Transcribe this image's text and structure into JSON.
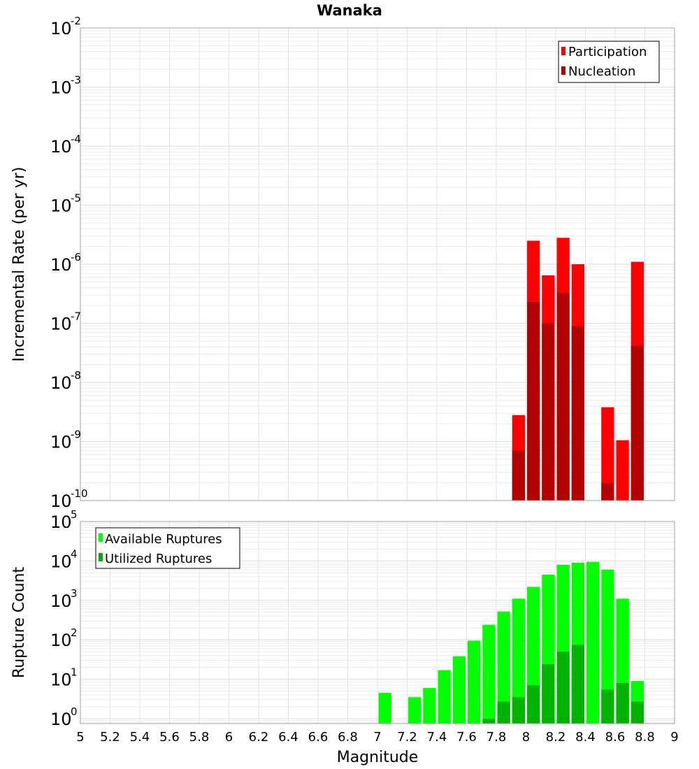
{
  "chart_data": [
    {
      "type": "bar",
      "title": "Wanaka",
      "xlabel": "Magnitude",
      "ylabel": "Incremental Rate (per yr)",
      "yscale": "log",
      "ylim": [
        1e-10,
        0.01
      ],
      "xlim": [
        5,
        9
      ],
      "bin_width": 0.1,
      "y_tick_exponents": [
        -2,
        -3,
        -4,
        -5,
        -6,
        -7,
        -8,
        -9,
        -10
      ],
      "legend_position": "top-right",
      "series": [
        {
          "name": "Participation",
          "color": "#ff0000",
          "x": [
            7.95,
            8.05,
            8.15,
            8.25,
            8.35,
            8.55,
            8.65,
            8.75
          ],
          "values": [
            2.8e-09,
            2.5e-06,
            6.5e-07,
            2.8e-06,
            1e-06,
            3.8e-09,
            1.05e-09,
            1.1e-06
          ]
        },
        {
          "name": "Nucleation",
          "color": "#b30000",
          "x": [
            7.95,
            8.05,
            8.15,
            8.25,
            8.35,
            8.55,
            8.75
          ],
          "values": [
            7e-10,
            2.3e-07,
            1e-07,
            3.3e-07,
            9e-08,
            2e-10,
            4.2e-08
          ]
        }
      ]
    },
    {
      "type": "bar",
      "title": "",
      "xlabel": "Magnitude",
      "ylabel": "Rupture Count",
      "yscale": "log",
      "ylim": [
        0.75,
        100000.0
      ],
      "xlim": [
        5,
        9
      ],
      "bin_width": 0.1,
      "y_tick_exponents": [
        5,
        4,
        3,
        2,
        1,
        0
      ],
      "x_tick_labels": [
        "5",
        "5.2",
        "5.4",
        "5.6",
        "5.8",
        "6",
        "6.2",
        "6.4",
        "6.6",
        "6.8",
        "7",
        "7.2",
        "7.4",
        "7.6",
        "7.8",
        "8",
        "8.2",
        "8.4",
        "8.6",
        "8.8",
        "9"
      ],
      "legend_position": "top-left",
      "series": [
        {
          "name": "Available Ruptures",
          "color": "#00ff00",
          "x": [
            7.05,
            7.25,
            7.35,
            7.45,
            7.55,
            7.65,
            7.75,
            7.85,
            7.95,
            8.05,
            8.15,
            8.25,
            8.35,
            8.45,
            8.55,
            8.65,
            8.75
          ],
          "values": [
            4.5,
            3.5,
            6,
            17,
            38,
            95,
            240,
            520,
            1100,
            2200,
            4500,
            8000,
            9000,
            9500,
            6000,
            1100,
            9
          ]
        },
        {
          "name": "Utilized Ruptures",
          "color": "#00b300",
          "x": [
            7.75,
            7.85,
            7.95,
            8.05,
            8.15,
            8.25,
            8.35,
            8.55,
            8.65,
            8.75
          ],
          "values": [
            1,
            2.7,
            3.5,
            7,
            24,
            50,
            75,
            5.5,
            8,
            2.7
          ]
        }
      ]
    }
  ]
}
